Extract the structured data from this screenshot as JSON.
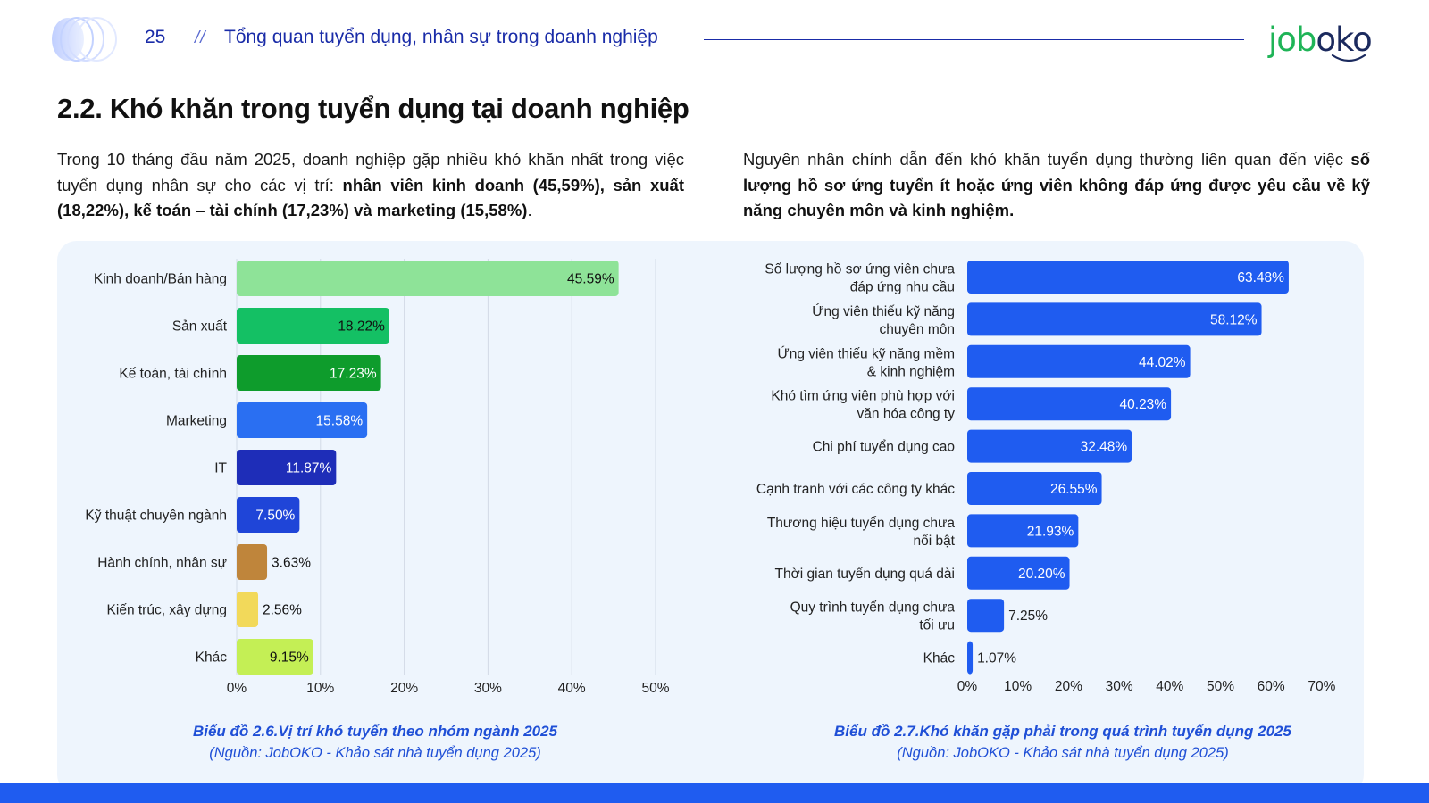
{
  "header": {
    "page_number": "25",
    "separator": "//",
    "title": "Tổng quan tuyển dụng, nhân sự trong doanh nghiệp",
    "logo_text_green": "job",
    "logo_text_navy": "oko"
  },
  "section": {
    "title": "2.2. Khó khăn trong tuyển dụng tại doanh nghiệp",
    "left_para": {
      "text1": "Trong 10 tháng đầu năm 2025, doanh nghiệp gặp nhiều khó khăn nhất trong việc tuyển dụng nhân sự cho các vị trí: ",
      "bold": "nhân viên kinh doanh (45,59%), sản xuất (18,22%), kế toán – tài chính (17,23%) và marketing (15,58%)",
      "text2": "."
    },
    "right_para": {
      "text1": "Nguyên nhân chính dẫn đến khó khăn tuyển dụng thường liên quan đến việc ",
      "bold": "số lượng hồ sơ ứng tuyển ít hoặc ứng viên không đáp ứng được yêu cầu về kỹ năng chuyên môn và kinh nghiệm."
    }
  },
  "colors": {
    "brand_blue": "#1a2ca8",
    "bar_blue": "#1f5cf0",
    "panel_bg": "#eef5fd",
    "caption_blue": "#1f4fd6"
  },
  "chart_data": [
    {
      "type": "bar",
      "orientation": "horizontal",
      "title": "Biểu đồ 2.6.Vị trí khó tuyển theo nhóm ngành 2025",
      "source": "(Nguồn: JobOKO - Khảo sát nhà tuyển dụng 2025)",
      "categories": [
        "Kinh doanh/Bán hàng",
        "Sản xuất",
        "Kế toán, tài chính",
        "Marketing",
        "IT",
        "Kỹ thuật chuyên ngành",
        "Hành chính, nhân sự",
        "Kiến trúc, xây dựng",
        "Khác"
      ],
      "values": [
        45.59,
        18.22,
        17.23,
        15.58,
        11.87,
        7.5,
        3.63,
        2.56,
        9.15
      ],
      "data_labels": [
        "45.59%",
        "18.22%",
        "17.23%",
        "15.58%",
        "11.87%",
        "7.50%",
        "3.63%",
        "2.56%",
        "9.15%"
      ],
      "bar_colors": [
        "#8ee398",
        "#14c064",
        "#0e9c2c",
        "#2a6ff2",
        "#1e2db8",
        "#1f45d8",
        "#bf853b",
        "#f2d95a",
        "#c4ef55"
      ],
      "label_colors": [
        "#111111",
        "#111111",
        "#ffffff",
        "#ffffff",
        "#ffffff",
        "#ffffff",
        "#111111",
        "#111111",
        "#111111"
      ],
      "xlim": [
        0,
        50
      ],
      "xticks": [
        "0%",
        "10%",
        "20%",
        "30%",
        "40%",
        "50%"
      ],
      "grid": true
    },
    {
      "type": "bar",
      "orientation": "horizontal",
      "title": "Biểu đồ 2.7.Khó khăn gặp phải trong quá trình tuyển dụng 2025",
      "source": "(Nguồn: JobOKO - Khảo sát nhà tuyển dụng 2025)",
      "categories": [
        [
          "Số lượng hồ sơ ứng viên chưa",
          "đáp ứng nhu cầu"
        ],
        [
          "Ứng viên thiếu kỹ năng",
          "chuyên môn"
        ],
        [
          "Ứng viên thiếu kỹ năng mềm",
          "& kinh nghiệm"
        ],
        [
          "Khó tìm ứng viên phù hợp với",
          "văn hóa công ty"
        ],
        [
          "Chi phí tuyển dụng cao"
        ],
        [
          "Cạnh tranh với các công ty khác"
        ],
        [
          "Thương hiệu tuyển dụng chưa",
          "nổi bật"
        ],
        [
          "Thời gian tuyển dụng quá dài"
        ],
        [
          "Quy trình tuyển dụng chưa",
          "tối ưu"
        ],
        [
          "Khác"
        ]
      ],
      "values": [
        63.48,
        58.12,
        44.02,
        40.23,
        32.48,
        26.55,
        21.93,
        20.2,
        7.25,
        1.07
      ],
      "data_labels": [
        "63.48%",
        "58.12%",
        "44.02%",
        "40.23%",
        "32.48%",
        "26.55%",
        "21.93%",
        "20.20%",
        "7.25%",
        "1.07%"
      ],
      "xlim": [
        0,
        70
      ],
      "xticks": [
        "0%",
        "10%",
        "20%",
        "30%",
        "40%",
        "50%",
        "60%",
        "70%"
      ],
      "grid": false
    }
  ]
}
